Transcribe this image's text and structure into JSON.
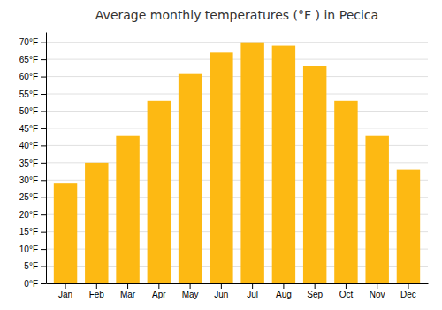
{
  "chart_data": {
    "type": "bar",
    "title": "Average monthly temperatures (°F ) in Pecica",
    "categories": [
      "Jan",
      "Feb",
      "Mar",
      "Apr",
      "May",
      "Jun",
      "Jul",
      "Aug",
      "Sep",
      "Oct",
      "Nov",
      "Dec"
    ],
    "values": [
      29,
      35,
      43,
      53,
      61,
      67,
      70,
      69,
      63,
      53,
      43,
      33
    ],
    "color": "#FDB913",
    "ylim": [
      0,
      73
    ],
    "yticks": [
      {
        "value": 0,
        "label": "0°F"
      },
      {
        "value": 5,
        "label": "5°F"
      },
      {
        "value": 10,
        "label": "10°F"
      },
      {
        "value": 15,
        "label": "15°F"
      },
      {
        "value": 20,
        "label": "20°F"
      },
      {
        "value": 25,
        "label": "25°F"
      },
      {
        "value": 30,
        "label": "30°F"
      },
      {
        "value": 35,
        "label": "35°F"
      },
      {
        "value": 40,
        "label": "40°F"
      },
      {
        "value": 45,
        "label": "45°F"
      },
      {
        "value": 50,
        "label": "50°F"
      },
      {
        "value": 55,
        "label": "55°F"
      },
      {
        "value": 60,
        "label": "60°F"
      },
      {
        "value": 65,
        "label": "65°F"
      },
      {
        "value": 70,
        "label": "70°F"
      }
    ],
    "grid": true
  }
}
